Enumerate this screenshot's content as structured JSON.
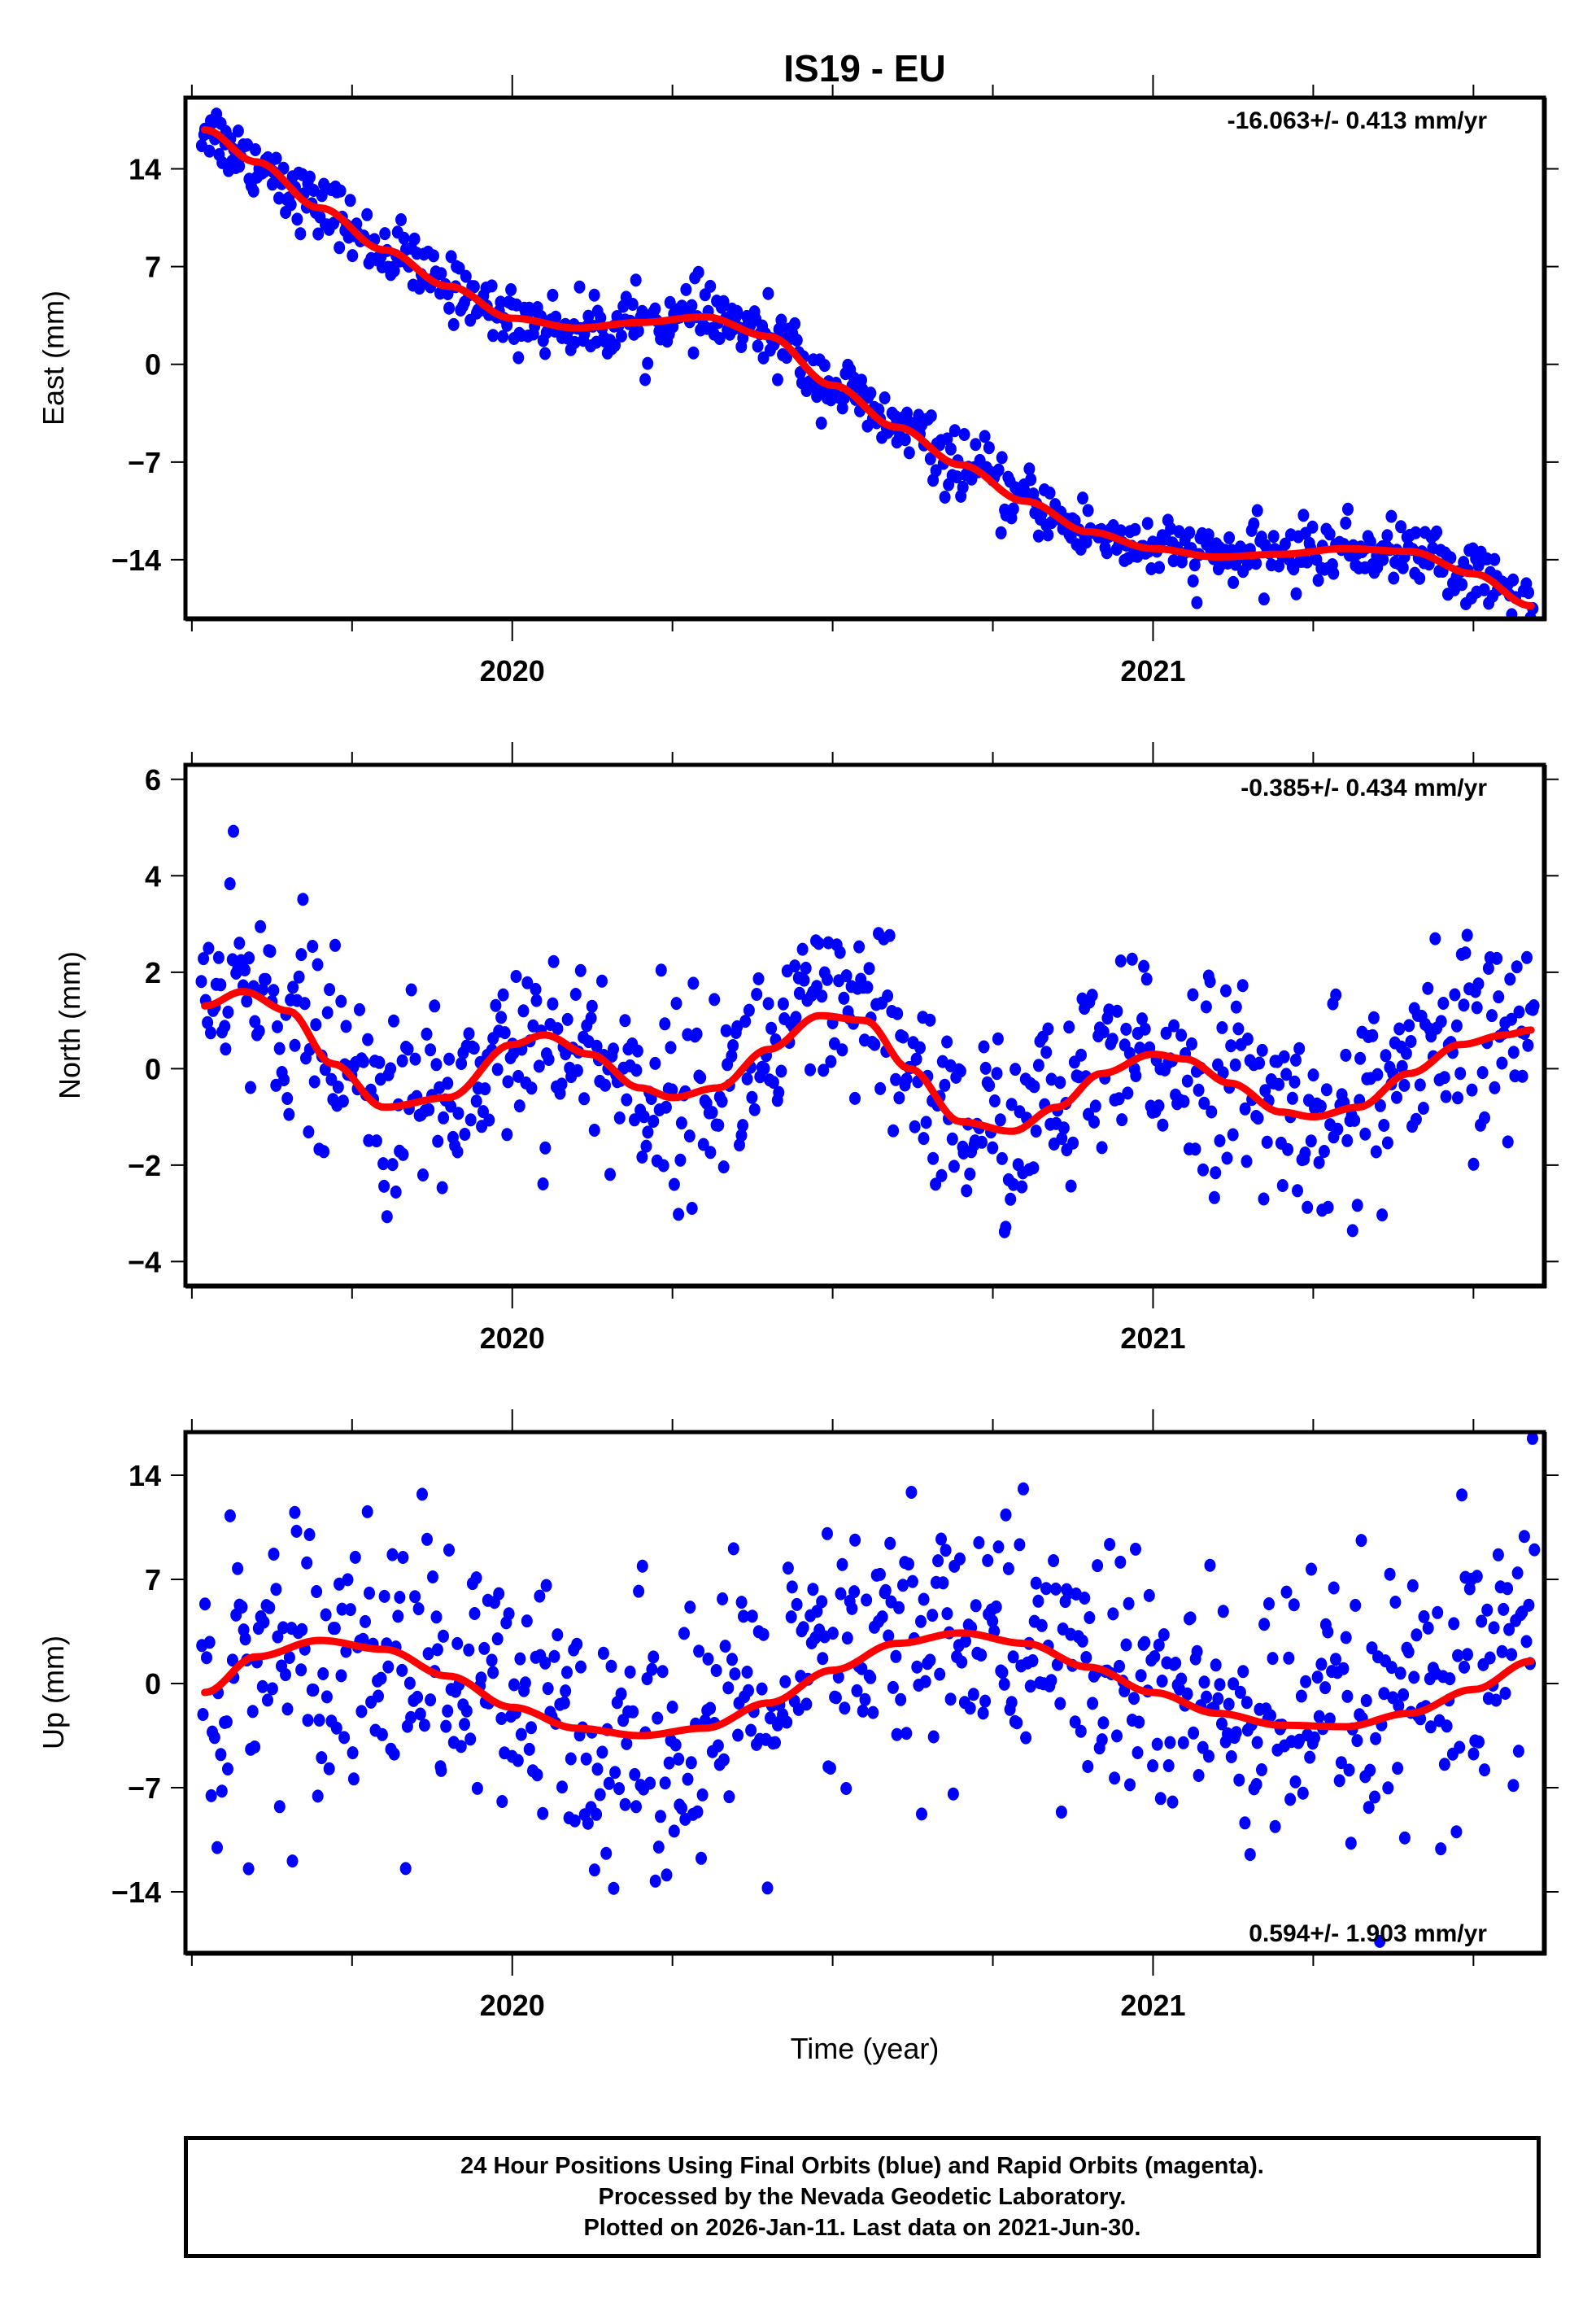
{
  "chart_data": {
    "type": "scatter",
    "title": "IS19 - EU",
    "xlabel": "Time (year)",
    "xlim": [
      2019.49,
      2021.61
    ],
    "x_major_ticks": [
      2020,
      2021
    ],
    "x_minor_ticks": [
      2019.5,
      2019.75,
      2020,
      2020.25,
      2020.5,
      2020.75,
      2021,
      2021.25,
      2021.5
    ],
    "x_tick_labels": [
      "2020",
      "2021"
    ],
    "colors": {
      "data": "#0000ff",
      "fit": "#ff0000",
      "frame": "#000000"
    },
    "panels": [
      {
        "name": "east",
        "ylabel": "East (mm)",
        "ylim": [
          -18.2,
          19.1
        ],
        "yticks": [
          14,
          7,
          0,
          -7,
          -14
        ],
        "ytick_labels": [
          "14",
          "7",
          "0",
          "−7",
          "−14"
        ],
        "rate_text": "-16.063+/- 0.413 mm/yr",
        "rate_position": "top-right",
        "trend": {
          "start_value": 17.0,
          "slope_mm_per_yr": -16.063
        },
        "seasonal_fit_samples": {
          "x": [
            2019.52,
            2019.6,
            2019.7,
            2019.8,
            2019.9,
            2020.0,
            2020.1,
            2020.2,
            2020.3,
            2020.4,
            2020.5,
            2020.6,
            2020.7,
            2020.8,
            2020.9,
            2021.0,
            2021.1,
            2021.2,
            2021.3,
            2021.4,
            2021.5,
            2021.59
          ],
          "y": [
            16.8,
            14.5,
            11.2,
            8.2,
            5.6,
            3.3,
            2.6,
            3.0,
            3.4,
            2.0,
            -1.5,
            -4.5,
            -7.2,
            -9.8,
            -12.0,
            -13.2,
            -13.8,
            -13.6,
            -13.2,
            -13.4,
            -15.0,
            -17.3
          ]
        },
        "scatter_noise_mm": 1.1,
        "point_count": 700
      },
      {
        "name": "north",
        "ylabel": "North (mm)",
        "ylim": [
          -4.5,
          6.3
        ],
        "yticks": [
          6,
          4,
          2,
          0,
          -2,
          -4
        ],
        "ytick_labels": [
          "6",
          "4",
          "2",
          "0",
          "−2",
          "−4"
        ],
        "rate_text": "-0.385+/- 0.434 mm/yr",
        "rate_position": "top-right",
        "seasonal_fit_samples": {
          "x": [
            2019.52,
            2019.58,
            2019.65,
            2019.72,
            2019.8,
            2019.9,
            2020.0,
            2020.05,
            2020.12,
            2020.2,
            2020.25,
            2020.32,
            2020.4,
            2020.48,
            2020.55,
            2020.62,
            2020.7,
            2020.78,
            2020.85,
            2020.92,
            2021.0,
            2021.05,
            2021.12,
            2021.2,
            2021.25,
            2021.32,
            2021.4,
            2021.48,
            2021.55,
            2021.59
          ],
          "y": [
            1.3,
            1.6,
            1.2,
            0.1,
            -0.8,
            -0.6,
            0.5,
            0.7,
            0.3,
            -0.4,
            -0.6,
            -0.4,
            0.4,
            1.1,
            1.0,
            0.0,
            -1.1,
            -1.3,
            -0.8,
            -0.1,
            0.3,
            0.2,
            -0.3,
            -0.9,
            -1.0,
            -0.8,
            -0.1,
            0.5,
            0.7,
            0.8
          ]
        },
        "scatter_noise_mm": 1.0,
        "point_count": 700
      },
      {
        "name": "up",
        "ylabel": "Up (mm)",
        "ylim": [
          -18.1,
          16.9
        ],
        "yticks": [
          14,
          7,
          0,
          -7,
          -14
        ],
        "ytick_labels": [
          "14",
          "7",
          "0",
          "−7",
          "−14"
        ],
        "rate_text": "0.594+/- 1.903 mm/yr",
        "rate_position": "bottom-right",
        "seasonal_fit_samples": {
          "x": [
            2019.52,
            2019.6,
            2019.7,
            2019.8,
            2019.9,
            2020.0,
            2020.1,
            2020.2,
            2020.3,
            2020.4,
            2020.5,
            2020.6,
            2020.7,
            2020.8,
            2020.9,
            2021.0,
            2021.1,
            2021.2,
            2021.3,
            2021.4,
            2021.5,
            2021.59
          ],
          "y": [
            -0.6,
            1.8,
            2.9,
            2.3,
            0.5,
            -1.6,
            -3.0,
            -3.5,
            -3.0,
            -1.3,
            0.9,
            2.7,
            3.4,
            2.7,
            1.1,
            -0.6,
            -2.0,
            -2.8,
            -2.9,
            -2.0,
            -0.4,
            1.5
          ]
        },
        "scatter_noise_mm": 4.6,
        "point_count": 700
      }
    ]
  },
  "footer": {
    "lines": [
      "24 Hour Positions Using Final Orbits (blue) and Rapid Orbits (magenta).",
      "Processed by the Nevada Geodetic Laboratory.",
      "Plotted on 2026-Jan-11. Last data on 2021-Jun-30."
    ]
  }
}
